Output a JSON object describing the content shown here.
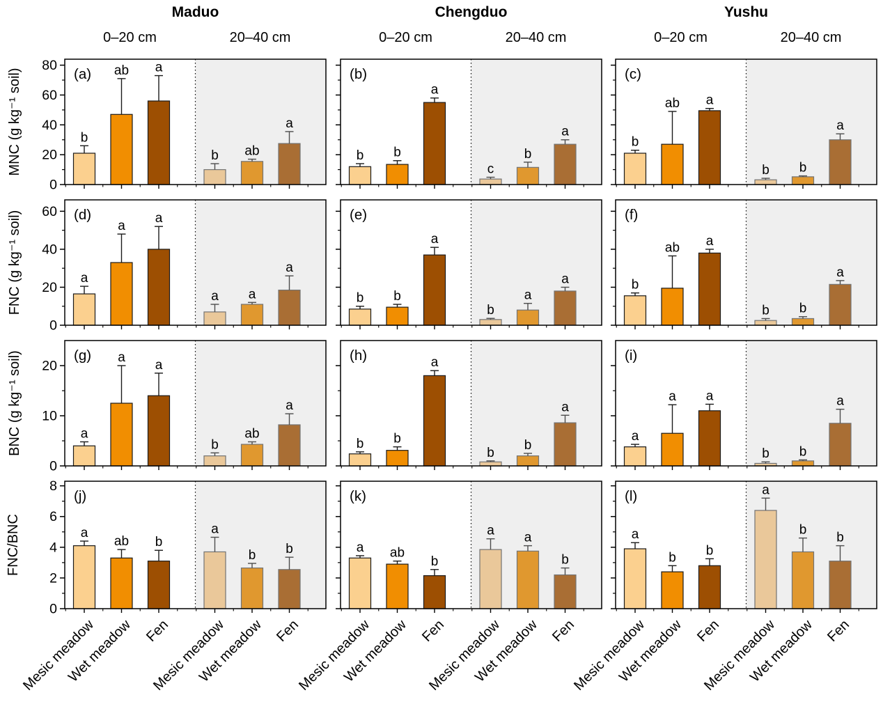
{
  "sites": [
    {
      "name": "Maduo",
      "depths": [
        "0–20 cm",
        "20–40 cm"
      ]
    },
    {
      "name": "Chengduo",
      "depths": [
        "0–20 cm",
        "20–40 cm"
      ]
    },
    {
      "name": "Yushu",
      "depths": [
        "0–20 cm",
        "20–40 cm"
      ]
    }
  ],
  "categories": [
    "Mesic meadow",
    "Wet meadow",
    "Fen"
  ],
  "colors": {
    "bars_0_20cm": [
      "#fbd08f",
      "#f18e01",
      "#9d4f02"
    ],
    "bars_20_40cm": [
      "#eac89a",
      "#e0982f",
      "#a96e34"
    ],
    "bar_edge_0_20cm": "#1a1a1a",
    "bar_edge_20_40cm": "#737373",
    "shaded_depth_background": "#efefef",
    "axis_color": "#000000"
  },
  "chart_data": {
    "type": "bar",
    "sites": [
      "Maduo",
      "Chengduo",
      "Yushu"
    ],
    "depth_groups": [
      "0–20 cm",
      "20–40 cm"
    ],
    "categories": [
      "Mesic meadow",
      "Wet meadow",
      "Fen"
    ],
    "error_bars": true,
    "grid": false,
    "legend": "none",
    "rows": [
      {
        "ylabel": "MNC (g kg⁻¹ soil)",
        "ylim": [
          0,
          84
        ],
        "yticks": [
          0,
          20,
          40,
          60,
          80
        ],
        "minor_step": 10,
        "panels": [
          {
            "label": "(a)",
            "site": "Maduo",
            "groups": [
              {
                "depth": "0–20 cm",
                "bars": [
                  {
                    "category": "Mesic meadow",
                    "value": 21,
                    "error": 5,
                    "letter": "b"
                  },
                  {
                    "category": "Wet meadow",
                    "value": 47,
                    "error": 24,
                    "letter": "ab"
                  },
                  {
                    "category": "Fen",
                    "value": 56,
                    "error": 17,
                    "letter": "a"
                  }
                ]
              },
              {
                "depth": "20–40 cm",
                "bars": [
                  {
                    "category": "Mesic meadow",
                    "value": 10,
                    "error": 4,
                    "letter": "b"
                  },
                  {
                    "category": "Wet meadow",
                    "value": 15.5,
                    "error": 1.5,
                    "letter": "ab"
                  },
                  {
                    "category": "Fen",
                    "value": 27.5,
                    "error": 8,
                    "letter": "a"
                  }
                ]
              }
            ]
          },
          {
            "label": "(b)",
            "site": "Chengduo",
            "groups": [
              {
                "depth": "0–20 cm",
                "bars": [
                  {
                    "category": "Mesic meadow",
                    "value": 12,
                    "error": 2,
                    "letter": "b"
                  },
                  {
                    "category": "Wet meadow",
                    "value": 13.5,
                    "error": 2.5,
                    "letter": "b"
                  },
                  {
                    "category": "Fen",
                    "value": 55,
                    "error": 3,
                    "letter": "a"
                  }
                ]
              },
              {
                "depth": "20–40 cm",
                "bars": [
                  {
                    "category": "Mesic meadow",
                    "value": 3.7,
                    "error": 1.2,
                    "letter": "c"
                  },
                  {
                    "category": "Wet meadow",
                    "value": 11.5,
                    "error": 3.5,
                    "letter": "b"
                  },
                  {
                    "category": "Fen",
                    "value": 27,
                    "error": 3,
                    "letter": "a"
                  }
                ]
              }
            ]
          },
          {
            "label": "(c)",
            "site": "Yushu",
            "groups": [
              {
                "depth": "0–20 cm",
                "bars": [
                  {
                    "category": "Mesic meadow",
                    "value": 21,
                    "error": 2,
                    "letter": "b"
                  },
                  {
                    "category": "Wet meadow",
                    "value": 27,
                    "error": 22,
                    "letter": "ab"
                  },
                  {
                    "category": "Fen",
                    "value": 49.5,
                    "error": 1.5,
                    "letter": "a"
                  }
                ]
              },
              {
                "depth": "20–40 cm",
                "bars": [
                  {
                    "category": "Mesic meadow",
                    "value": 3.2,
                    "error": 1,
                    "letter": "b"
                  },
                  {
                    "category": "Wet meadow",
                    "value": 5.2,
                    "error": 0.6,
                    "letter": "b"
                  },
                  {
                    "category": "Fen",
                    "value": 30,
                    "error": 4,
                    "letter": "a"
                  }
                ]
              }
            ]
          }
        ]
      },
      {
        "ylabel": "FNC (g kg⁻¹ soil)",
        "ylim": [
          0,
          66
        ],
        "yticks": [
          0,
          20,
          40,
          60
        ],
        "minor_step": 10,
        "panels": [
          {
            "label": "(d)",
            "site": "Maduo",
            "groups": [
              {
                "depth": "0–20 cm",
                "bars": [
                  {
                    "category": "Mesic meadow",
                    "value": 16.5,
                    "error": 4,
                    "letter": "a"
                  },
                  {
                    "category": "Wet meadow",
                    "value": 33,
                    "error": 15,
                    "letter": "a"
                  },
                  {
                    "category": "Fen",
                    "value": 40,
                    "error": 12,
                    "letter": "a"
                  }
                ]
              },
              {
                "depth": "20–40 cm",
                "bars": [
                  {
                    "category": "Mesic meadow",
                    "value": 7,
                    "error": 4,
                    "letter": "a"
                  },
                  {
                    "category": "Wet meadow",
                    "value": 11,
                    "error": 1,
                    "letter": "a"
                  },
                  {
                    "category": "Fen",
                    "value": 18.5,
                    "error": 7.5,
                    "letter": "a"
                  }
                ]
              }
            ]
          },
          {
            "label": "(e)",
            "site": "Chengduo",
            "groups": [
              {
                "depth": "0–20 cm",
                "bars": [
                  {
                    "category": "Mesic meadow",
                    "value": 8.5,
                    "error": 1.5,
                    "letter": "b"
                  },
                  {
                    "category": "Wet meadow",
                    "value": 9.5,
                    "error": 1.5,
                    "letter": "b"
                  },
                  {
                    "category": "Fen",
                    "value": 37,
                    "error": 4,
                    "letter": "a"
                  }
                ]
              },
              {
                "depth": "20–40 cm",
                "bars": [
                  {
                    "category": "Mesic meadow",
                    "value": 3,
                    "error": 0.6,
                    "letter": "b"
                  },
                  {
                    "category": "Wet meadow",
                    "value": 8,
                    "error": 3.5,
                    "letter": "a"
                  },
                  {
                    "category": "Fen",
                    "value": 18,
                    "error": 2,
                    "letter": "a"
                  }
                ]
              }
            ]
          },
          {
            "label": "(f)",
            "site": "Yushu",
            "groups": [
              {
                "depth": "0–20 cm",
                "bars": [
                  {
                    "category": "Mesic meadow",
                    "value": 15.5,
                    "error": 1.5,
                    "letter": "b"
                  },
                  {
                    "category": "Wet meadow",
                    "value": 19.5,
                    "error": 17,
                    "letter": "ab"
                  },
                  {
                    "category": "Fen",
                    "value": 38,
                    "error": 2,
                    "letter": "a"
                  }
                ]
              },
              {
                "depth": "20–40 cm",
                "bars": [
                  {
                    "category": "Mesic meadow",
                    "value": 2.5,
                    "error": 1,
                    "letter": "b"
                  },
                  {
                    "category": "Wet meadow",
                    "value": 3.5,
                    "error": 1,
                    "letter": "b"
                  },
                  {
                    "category": "Fen",
                    "value": 21.5,
                    "error": 2,
                    "letter": "a"
                  }
                ]
              }
            ]
          }
        ]
      },
      {
        "ylabel": "BNC (g kg⁻¹ soil)",
        "ylim": [
          0,
          25
        ],
        "yticks": [
          0,
          10,
          20
        ],
        "minor_step": 5,
        "panels": [
          {
            "label": "(g)",
            "site": "Maduo",
            "groups": [
              {
                "depth": "0–20 cm",
                "bars": [
                  {
                    "category": "Mesic meadow",
                    "value": 4,
                    "error": 0.8,
                    "letter": "a"
                  },
                  {
                    "category": "Wet meadow",
                    "value": 12.5,
                    "error": 7.5,
                    "letter": "a"
                  },
                  {
                    "category": "Fen",
                    "value": 14,
                    "error": 4.5,
                    "letter": "a"
                  }
                ]
              },
              {
                "depth": "20–40 cm",
                "bars": [
                  {
                    "category": "Mesic meadow",
                    "value": 2,
                    "error": 0.6,
                    "letter": "b"
                  },
                  {
                    "category": "Wet meadow",
                    "value": 4.3,
                    "error": 0.5,
                    "letter": "ab"
                  },
                  {
                    "category": "Fen",
                    "value": 8.2,
                    "error": 2.2,
                    "letter": "a"
                  }
                ]
              }
            ]
          },
          {
            "label": "(h)",
            "site": "Chengduo",
            "groups": [
              {
                "depth": "0–20 cm",
                "bars": [
                  {
                    "category": "Mesic meadow",
                    "value": 2.4,
                    "error": 0.4,
                    "letter": "b"
                  },
                  {
                    "category": "Wet meadow",
                    "value": 3.1,
                    "error": 0.7,
                    "letter": "b"
                  },
                  {
                    "category": "Fen",
                    "value": 18,
                    "error": 1,
                    "letter": "a"
                  }
                ]
              },
              {
                "depth": "20–40 cm",
                "bars": [
                  {
                    "category": "Mesic meadow",
                    "value": 0.8,
                    "error": 0.2,
                    "letter": "b"
                  },
                  {
                    "category": "Wet meadow",
                    "value": 2,
                    "error": 0.5,
                    "letter": "b"
                  },
                  {
                    "category": "Fen",
                    "value": 8.6,
                    "error": 1.5,
                    "letter": "a"
                  }
                ]
              }
            ]
          },
          {
            "label": "(i)",
            "site": "Yushu",
            "groups": [
              {
                "depth": "0–20 cm",
                "bars": [
                  {
                    "category": "Mesic meadow",
                    "value": 3.8,
                    "error": 0.5,
                    "letter": "a"
                  },
                  {
                    "category": "Wet meadow",
                    "value": 6.5,
                    "error": 5.7,
                    "letter": "a"
                  },
                  {
                    "category": "Fen",
                    "value": 11,
                    "error": 1.3,
                    "letter": "a"
                  }
                ]
              },
              {
                "depth": "20–40 cm",
                "bars": [
                  {
                    "category": "Mesic meadow",
                    "value": 0.5,
                    "error": 0.3,
                    "letter": "b"
                  },
                  {
                    "category": "Wet meadow",
                    "value": 1,
                    "error": 0.2,
                    "letter": "b"
                  },
                  {
                    "category": "Fen",
                    "value": 8.5,
                    "error": 2.8,
                    "letter": "a"
                  }
                ]
              }
            ]
          }
        ]
      },
      {
        "ylabel": "FNC/BNC",
        "ylim": [
          0,
          8.3
        ],
        "yticks": [
          0,
          2,
          4,
          6,
          8
        ],
        "minor_step": 1,
        "panels": [
          {
            "label": "(j)",
            "site": "Maduo",
            "groups": [
              {
                "depth": "0–20 cm",
                "bars": [
                  {
                    "category": "Mesic meadow",
                    "value": 4.1,
                    "error": 0.3,
                    "letter": "a"
                  },
                  {
                    "category": "Wet meadow",
                    "value": 3.3,
                    "error": 0.55,
                    "letter": "ab"
                  },
                  {
                    "category": "Fen",
                    "value": 3.1,
                    "error": 0.7,
                    "letter": "b"
                  }
                ]
              },
              {
                "depth": "20–40 cm",
                "bars": [
                  {
                    "category": "Mesic meadow",
                    "value": 3.7,
                    "error": 0.95,
                    "letter": "a"
                  },
                  {
                    "category": "Wet meadow",
                    "value": 2.65,
                    "error": 0.3,
                    "letter": "b"
                  },
                  {
                    "category": "Fen",
                    "value": 2.55,
                    "error": 0.8,
                    "letter": "b"
                  }
                ]
              }
            ]
          },
          {
            "label": "(k)",
            "site": "Chengduo",
            "groups": [
              {
                "depth": "0–20 cm",
                "bars": [
                  {
                    "category": "Mesic meadow",
                    "value": 3.3,
                    "error": 0.15,
                    "letter": "a"
                  },
                  {
                    "category": "Wet meadow",
                    "value": 2.9,
                    "error": 0.2,
                    "letter": "ab"
                  },
                  {
                    "category": "Fen",
                    "value": 2.15,
                    "error": 0.4,
                    "letter": "b"
                  }
                ]
              },
              {
                "depth": "20–40 cm",
                "bars": [
                  {
                    "category": "Mesic meadow",
                    "value": 3.85,
                    "error": 0.7,
                    "letter": "a"
                  },
                  {
                    "category": "Wet meadow",
                    "value": 3.75,
                    "error": 0.35,
                    "letter": "a"
                  },
                  {
                    "category": "Fen",
                    "value": 2.2,
                    "error": 0.45,
                    "letter": "b"
                  }
                ]
              }
            ]
          },
          {
            "label": "(l)",
            "site": "Yushu",
            "groups": [
              {
                "depth": "0–20 cm",
                "bars": [
                  {
                    "category": "Mesic meadow",
                    "value": 3.9,
                    "error": 0.4,
                    "letter": "a"
                  },
                  {
                    "category": "Wet meadow",
                    "value": 2.4,
                    "error": 0.4,
                    "letter": "b"
                  },
                  {
                    "category": "Fen",
                    "value": 2.8,
                    "error": 0.45,
                    "letter": "b"
                  }
                ]
              },
              {
                "depth": "20–40 cm",
                "bars": [
                  {
                    "category": "Mesic meadow",
                    "value": 6.4,
                    "error": 0.8,
                    "letter": "a"
                  },
                  {
                    "category": "Wet meadow",
                    "value": 3.7,
                    "error": 0.9,
                    "letter": "b"
                  },
                  {
                    "category": "Fen",
                    "value": 3.1,
                    "error": 1.0,
                    "letter": "b"
                  }
                ]
              }
            ]
          }
        ]
      }
    ]
  }
}
